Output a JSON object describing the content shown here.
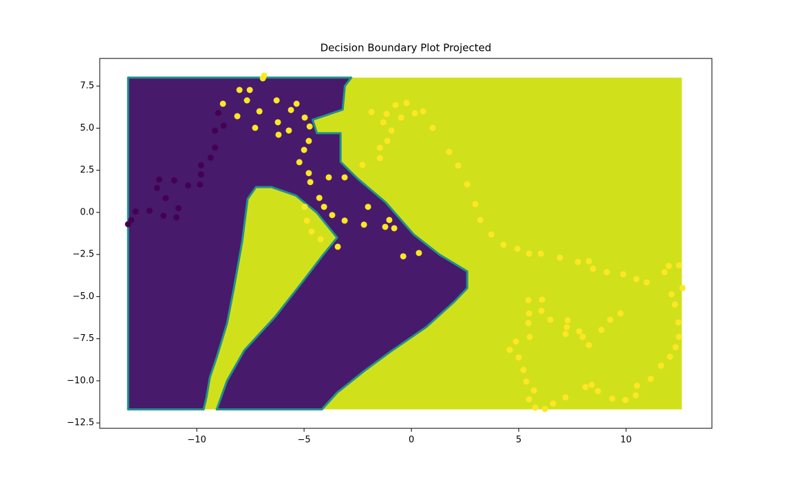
{
  "chart_data": {
    "type": "decision_boundary",
    "title": "Decision Boundary Plot Projected",
    "xlim": [
      -14.52,
      14.0
    ],
    "ylim": [
      -12.82,
      9.14
    ],
    "xticks": [
      {
        "value": -10,
        "label": "−10"
      },
      {
        "value": -5,
        "label": "−5"
      },
      0,
      5,
      10
    ],
    "yticks": [
      {
        "value": -12.5,
        "label": "−12.5"
      },
      {
        "value": -10,
        "label": "−10.0"
      },
      {
        "value": -7.5,
        "label": "−7.5"
      },
      {
        "value": -5,
        "label": "−5.0"
      },
      {
        "value": -2.5,
        "label": "−2.5"
      },
      {
        "value": 0,
        "label": "0.0"
      },
      2.5,
      {
        "value": 5,
        "label": "5.0"
      },
      7.5
    ],
    "edge_color": "#21918c",
    "regions": [
      {
        "color": "#d0e11c",
        "x": [
          -13.2,
          12.6,
          12.6,
          -13.2
        ],
        "y": [
          8.0,
          8.0,
          -11.7,
          -11.7
        ]
      },
      {
        "color": "#471a6b",
        "x": [
          -13.2,
          -13.2,
          -9.68,
          -9.55,
          -9.39,
          -9.07,
          -8.59,
          -8.27,
          -7.88,
          -7.63,
          -7.24,
          -6.51,
          -5.38,
          -4.42,
          -3.46,
          -4.1,
          -5.06,
          -6.35,
          -7.79,
          -8.59,
          -9.07,
          -4.17,
          -3.46,
          -2.18,
          -0.9,
          0.7,
          2.0,
          2.6,
          2.6,
          1.3,
          0.1,
          -1.2,
          -2.5,
          -3.3,
          -3.3,
          -4.4,
          -4.6,
          -3.2,
          -3.1,
          -2.8
        ],
        "y": [
          8.0,
          -11.7,
          -11.7,
          -11.0,
          -9.8,
          -8.6,
          -6.6,
          -4.5,
          -1.7,
          0.8,
          1.5,
          1.5,
          1.0,
          0.0,
          -1.5,
          -2.5,
          -4.1,
          -6.2,
          -8.2,
          -10.0,
          -11.7,
          -11.7,
          -10.7,
          -9.4,
          -8.2,
          -6.8,
          -5.3,
          -4.5,
          -3.5,
          -2.5,
          -1.3,
          0.6,
          2.0,
          3.0,
          4.7,
          4.7,
          5.5,
          6.1,
          7.5,
          8.0
        ]
      }
    ],
    "series": [
      {
        "color": "#440154",
        "x": [
          -13.2,
          -13.05,
          -12.85,
          -12.2,
          -11.85,
          -11.75,
          -11.45,
          -11.55,
          -11.05,
          -10.95,
          -10.85,
          -10.4,
          -9.85,
          -9.8,
          -9.8,
          -9.35,
          -9.15,
          -9.15,
          -9.0,
          -8.75
        ],
        "values": [
          -0.7,
          -0.45,
          0.05,
          0.1,
          1.45,
          1.95,
          0.85,
          -0.2,
          1.9,
          -0.3,
          0.25,
          1.6,
          1.65,
          2.25,
          2.8,
          3.25,
          3.85,
          4.85,
          5.9,
          5.15
        ]
      },
      {
        "color": "#fde725",
        "x": [
          -6.86,
          -6.92,
          -8.01,
          -7.53,
          -8.78,
          -7.66,
          -8.11,
          -7.08,
          -7.28,
          -6.28,
          -5.35,
          -5.61,
          -6.22,
          -6.19,
          -5.71,
          -4.97,
          -4.74,
          -4.78,
          -5.0,
          -5.22,
          -4.78,
          -3.85,
          -4.71,
          -4.29,
          -4.07,
          -3.69,
          -4.97,
          -4.87,
          -4.65,
          -4.23,
          -3.43,
          -3.11,
          -3.11,
          -2.28,
          -2.02,
          -2.21,
          -1.22,
          -1.03,
          -0.8,
          -0.38,
          0.35,
          -1.86,
          -1.31,
          -1.15,
          -0.93,
          -1.12,
          -1.47,
          -1.47,
          -0.74,
          -0.48,
          -0.22,
          0.16,
          0.54,
          0.99,
          1.76,
          2.18,
          2.6,
          2.98,
          3.21,
          3.72,
          4.29,
          4.94,
          5.48,
          6.03,
          6.92,
          7.76,
          8.27,
          8.46,
          9.1,
          9.87,
          10.48,
          10.96,
          11.79,
          11.99,
          12.47,
          12.63,
          12.12,
          12.28,
          12.44,
          12.47,
          12.31,
          12.05,
          11.63,
          11.15,
          10.51,
          10.45,
          9.97,
          9.36,
          8.69,
          8.4,
          8.11,
          8.27,
          7.98,
          7.82,
          8.85,
          9.26,
          9.74,
          7.24,
          7.28,
          7.18,
          6.47,
          6.06,
          5.45,
          5.48,
          5.45,
          5.51,
          6.09,
          4.87,
          4.58,
          5.0,
          5.22,
          5.35,
          5.71,
          5.48,
          5.77,
          6.22,
          6.6,
          7.18
        ],
        "values": [
          8.12,
          7.96,
          7.27,
          7.27,
          6.45,
          6.65,
          5.71,
          6.0,
          5.02,
          6.65,
          6.45,
          6.08,
          5.35,
          4.61,
          4.86,
          5.63,
          5.1,
          4.24,
          3.71,
          2.98,
          2.33,
          2.08,
          1.8,
          0.86,
          0.33,
          -0.16,
          0.33,
          -0.49,
          -1.14,
          -1.59,
          -2.04,
          -0.49,
          2.08,
          2.82,
          0.33,
          -0.73,
          -0.86,
          -0.45,
          -0.94,
          -2.61,
          -2.41,
          5.96,
          5.35,
          5.84,
          4.86,
          4.24,
          3.84,
          3.22,
          6.37,
          5.63,
          6.49,
          5.88,
          6.0,
          5.02,
          3.59,
          2.78,
          1.67,
          0.49,
          -0.45,
          -1.31,
          -1.92,
          -2.16,
          -2.45,
          -2.45,
          -2.69,
          -2.94,
          -2.9,
          -3.35,
          -3.55,
          -3.67,
          -3.96,
          -4.16,
          -3.55,
          -3.18,
          -3.14,
          -4.49,
          -4.86,
          -5.47,
          -6.53,
          -7.39,
          -8.0,
          -8.57,
          -9.1,
          -9.88,
          -10.29,
          -10.86,
          -11.14,
          -11.06,
          -10.61,
          -10.24,
          -10.37,
          -7.88,
          -7.39,
          -7.06,
          -6.98,
          -6.37,
          -6.0,
          -6.82,
          -6.41,
          -7.22,
          -6.37,
          -5.84,
          -5.22,
          -6.0,
          -6.57,
          -7.39,
          -5.18,
          -7.67,
          -8.16,
          -8.61,
          -9.35,
          -10.04,
          -10.57,
          -11.1,
          -11.59,
          -11.67,
          -11.35,
          -10.98
        ]
      }
    ]
  }
}
